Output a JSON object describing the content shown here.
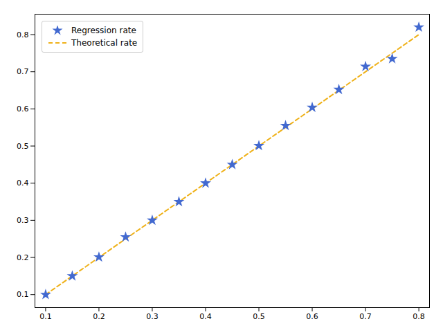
{
  "chart_data": {
    "type": "scatter",
    "series": [
      {
        "name": "Regression rate",
        "type": "scatter",
        "marker": "star",
        "x": [
          0.1,
          0.15,
          0.2,
          0.25,
          0.3,
          0.35,
          0.4,
          0.45,
          0.5,
          0.55,
          0.6,
          0.65,
          0.7,
          0.75,
          0.8
        ],
        "values": [
          0.1,
          0.15,
          0.201,
          0.255,
          0.3,
          0.35,
          0.4,
          0.45,
          0.501,
          0.555,
          0.604,
          0.652,
          0.714,
          0.735,
          0.82
        ]
      },
      {
        "name": "Theoretical rate",
        "type": "line",
        "line_style": "dashed",
        "x": [
          0.1,
          0.8
        ],
        "values": [
          0.1,
          0.8
        ]
      }
    ],
    "xlim": [
      0.08,
      0.82
    ],
    "ylim": [
      0.065,
      0.855
    ],
    "xticks": [
      0.1,
      0.2,
      0.3,
      0.4,
      0.5,
      0.6,
      0.7,
      0.8
    ],
    "yticks": [
      0.1,
      0.2,
      0.3,
      0.4,
      0.5,
      0.6,
      0.7,
      0.8
    ],
    "grid": false,
    "legend": "upper left"
  }
}
